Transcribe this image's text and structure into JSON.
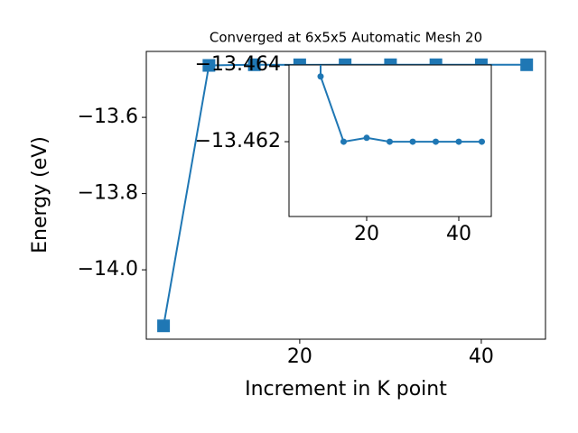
{
  "chart_data": {
    "type": "line",
    "title": "Converged at 6x5x5 Automatic Mesh 20",
    "x_label": "Increment in K point",
    "y_label": "Energy (eV)",
    "x": [
      5,
      10,
      15,
      20,
      25,
      30,
      35,
      40,
      45
    ],
    "series": [
      {
        "name": "Energy",
        "color": "#1f77b4",
        "values": [
          -14.147,
          -13.4637,
          -13.462,
          -13.4621,
          -13.462,
          -13.462,
          -13.462,
          -13.462,
          -13.462
        ]
      }
    ],
    "xlim": [
      3.1,
      47.07
    ],
    "xticks": [
      20,
      40
    ],
    "ylim": [
      -14.182,
      -13.427
    ],
    "yticks": [
      {
        "value": -13.6,
        "label": "−13.6"
      },
      {
        "value": -13.8,
        "label": "−13.8"
      },
      {
        "value": -14.0,
        "label": "−14.0"
      }
    ],
    "inset": {
      "xlim": [
        3.14,
        47.06
      ],
      "xticks": [
        20,
        40
      ],
      "ylim": [
        -13.46005,
        -13.464
      ],
      "yticks": [
        {
          "value": -13.464,
          "label": "−13.464"
        },
        {
          "value": -13.462,
          "label": "−13.462"
        }
      ]
    }
  }
}
